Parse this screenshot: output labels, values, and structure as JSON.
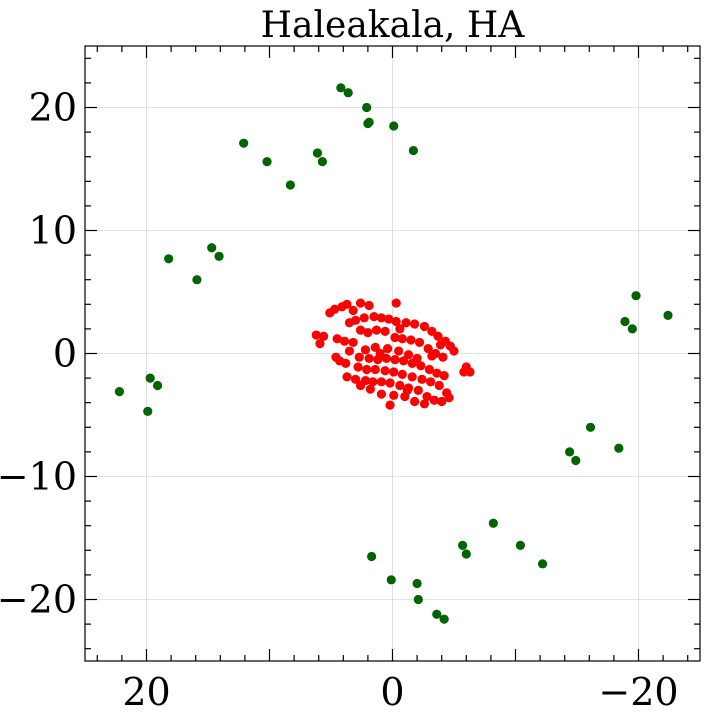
{
  "chart_data": {
    "type": "scatter",
    "title": "Haleakala, HA",
    "xlabel": "",
    "ylabel": "",
    "xlim": [
      25,
      -25
    ],
    "ylim": [
      -25,
      25
    ],
    "xticks": [
      20,
      0,
      -20
    ],
    "xtick_labels": [
      "20",
      "0",
      "−20"
    ],
    "yticks": [
      20,
      10,
      0,
      -10,
      -20
    ],
    "ytick_labels": [
      "20",
      "10",
      "0",
      "−10",
      "−20"
    ],
    "grid": true,
    "series": [
      {
        "color": "#006400",
        "points": [
          [
            4.2,
            21.6
          ],
          [
            3.6,
            21.2
          ],
          [
            2.1,
            20.0
          ],
          [
            1.9,
            18.8
          ],
          [
            2.0,
            18.7
          ],
          [
            -0.1,
            18.5
          ],
          [
            -1.7,
            16.5
          ],
          [
            12.1,
            17.1
          ],
          [
            10.2,
            15.6
          ],
          [
            6.1,
            16.3
          ],
          [
            5.7,
            15.6
          ],
          [
            8.3,
            13.7
          ],
          [
            18.2,
            7.7
          ],
          [
            14.7,
            8.6
          ],
          [
            14.1,
            7.9
          ],
          [
            15.9,
            6.0
          ],
          [
            19.7,
            -2.0
          ],
          [
            19.1,
            -2.6
          ],
          [
            22.2,
            -3.1
          ],
          [
            19.9,
            -4.7
          ],
          [
            -18.9,
            2.6
          ],
          [
            -19.5,
            2.0
          ],
          [
            -19.8,
            4.7
          ],
          [
            -22.4,
            3.1
          ],
          [
            -16.1,
            -6.0
          ],
          [
            -14.4,
            -8.0
          ],
          [
            -14.9,
            -8.7
          ],
          [
            -18.4,
            -7.7
          ],
          [
            -8.2,
            -13.8
          ],
          [
            -10.4,
            -15.6
          ],
          [
            -12.2,
            -17.1
          ],
          [
            -5.7,
            -15.6
          ],
          [
            -6.0,
            -16.3
          ],
          [
            1.7,
            -16.5
          ],
          [
            0.1,
            -18.4
          ],
          [
            -2.0,
            -18.7
          ],
          [
            -2.1,
            -20.0
          ],
          [
            -3.6,
            -21.2
          ],
          [
            -4.2,
            -21.6
          ]
        ]
      },
      {
        "color": "#ff0000",
        "points": [
          [
            6.2,
            1.5
          ],
          [
            5.9,
            0.8
          ],
          [
            5.6,
            1.4
          ],
          [
            5.1,
            3.3
          ],
          [
            4.7,
            3.6
          ],
          [
            4.1,
            3.8
          ],
          [
            3.7,
            4.0
          ],
          [
            3.2,
            3.5
          ],
          [
            2.6,
            4.1
          ],
          [
            1.9,
            3.9
          ],
          [
            3.5,
            2.5
          ],
          [
            3.0,
            2.7
          ],
          [
            2.3,
            2.9
          ],
          [
            1.5,
            3.0
          ],
          [
            0.9,
            2.9
          ],
          [
            0.3,
            2.8
          ],
          [
            -0.3,
            2.6
          ],
          [
            -1.1,
            2.5
          ],
          [
            -1.8,
            2.4
          ],
          [
            -2.6,
            2.2
          ],
          [
            -3.2,
            1.8
          ],
          [
            -3.7,
            1.4
          ],
          [
            -4.3,
            1.0
          ],
          [
            -4.7,
            0.6
          ],
          [
            -5.0,
            0.2
          ],
          [
            4.5,
            1.2
          ],
          [
            3.9,
            1.0
          ],
          [
            3.2,
            0.9
          ],
          [
            2.6,
            1.9
          ],
          [
            2.0,
            1.7
          ],
          [
            1.3,
            1.9
          ],
          [
            0.6,
            1.8
          ],
          [
            -0.2,
            1.3
          ],
          [
            -0.8,
            1.2
          ],
          [
            -1.5,
            1.1
          ],
          [
            -2.2,
            0.9
          ],
          [
            -2.9,
            0.4
          ],
          [
            -3.5,
            0.0
          ],
          [
            -4.1,
            -0.3
          ],
          [
            3.5,
            0.2
          ],
          [
            2.7,
            -0.3
          ],
          [
            1.9,
            -0.4
          ],
          [
            1.2,
            -0.5
          ],
          [
            0.5,
            -0.4
          ],
          [
            -0.2,
            -0.5
          ],
          [
            -0.9,
            -0.6
          ],
          [
            -1.6,
            -0.8
          ],
          [
            -2.3,
            -1.0
          ],
          [
            -3.0,
            -1.3
          ],
          [
            -3.6,
            -1.6
          ],
          [
            -4.2,
            -1.8
          ],
          [
            4.6,
            -0.3
          ],
          [
            4.3,
            -0.6
          ],
          [
            3.8,
            -0.8
          ],
          [
            2.2,
            0.3
          ],
          [
            1.4,
            0.5
          ],
          [
            0.4,
            0.4
          ],
          [
            -0.5,
            0.2
          ],
          [
            -1.3,
            -0.1
          ],
          [
            -2.0,
            -0.4
          ],
          [
            2.8,
            -1.1
          ],
          [
            2.1,
            -1.3
          ],
          [
            1.4,
            -1.3
          ],
          [
            0.6,
            -1.4
          ],
          [
            -0.1,
            -1.5
          ],
          [
            -0.8,
            -1.7
          ],
          [
            -1.6,
            -1.9
          ],
          [
            -2.4,
            -2.1
          ],
          [
            -3.1,
            -2.3
          ],
          [
            -3.8,
            -2.6
          ],
          [
            -4.4,
            -3.2
          ],
          [
            3.7,
            -1.9
          ],
          [
            3.0,
            -2.1
          ],
          [
            2.2,
            -2.2
          ],
          [
            1.6,
            -2.3
          ],
          [
            0.9,
            -2.3
          ],
          [
            0.2,
            -2.4
          ],
          [
            -0.6,
            -2.6
          ],
          [
            -1.3,
            -2.8
          ],
          [
            -2.1,
            -3.0
          ],
          [
            -2.8,
            -3.5
          ],
          [
            -3.4,
            -3.8
          ],
          [
            -4.0,
            -3.9
          ],
          [
            -4.6,
            -3.6
          ],
          [
            2.6,
            -2.6
          ],
          [
            1.8,
            -2.9
          ],
          [
            0.9,
            -3.3
          ],
          [
            -0.1,
            -3.4
          ],
          [
            -1.0,
            -3.5
          ],
          [
            -1.8,
            -3.9
          ],
          [
            -2.6,
            -4.1
          ],
          [
            0.2,
            -4.2
          ],
          [
            -1.2,
            -3.0
          ],
          [
            -5.8,
            -1.5
          ],
          [
            -6.3,
            -1.5
          ],
          [
            -6.0,
            -1.1
          ],
          [
            -3.2,
            -0.2
          ],
          [
            -0.3,
            4.1
          ],
          [
            -3.9,
            0.7
          ],
          [
            1.0,
            0.0
          ],
          [
            -0.6,
            2.0
          ]
        ]
      }
    ]
  }
}
